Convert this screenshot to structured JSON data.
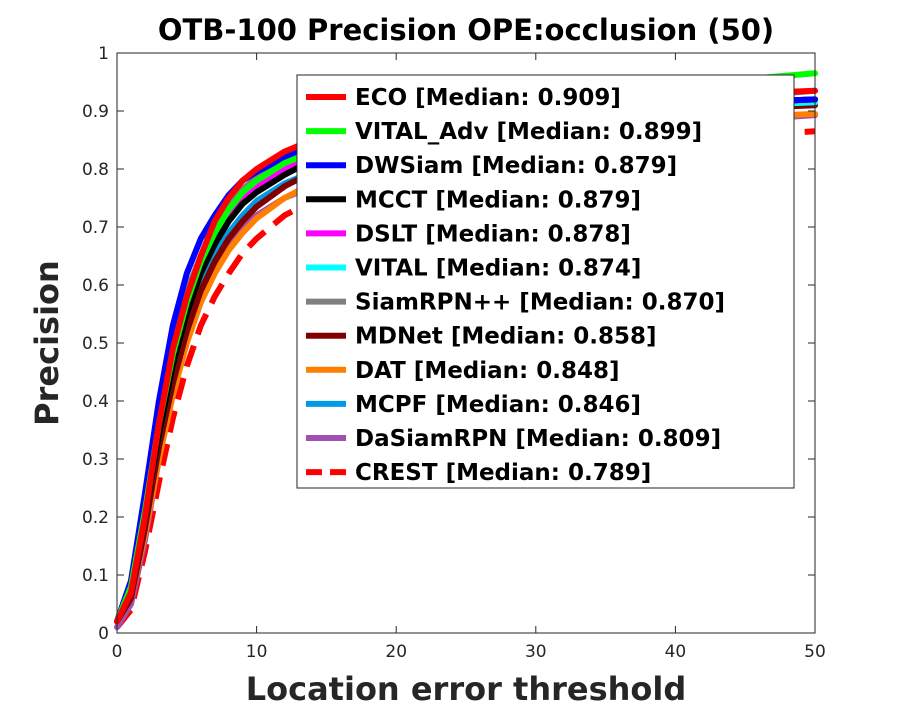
{
  "chart_data": {
    "type": "line",
    "title": "OTB-100 Precision OPE:occlusion (50)",
    "xlabel": "Location error threshold",
    "ylabel": "Precision",
    "xlim": [
      0,
      50
    ],
    "ylim": [
      0,
      1
    ],
    "xticks": [
      "0",
      "10",
      "20",
      "30",
      "40",
      "50"
    ],
    "yticks": [
      "0",
      "0.1",
      "0.2",
      "0.3",
      "0.4",
      "0.5",
      "0.6",
      "0.7",
      "0.8",
      "0.9",
      "1"
    ],
    "grid": false,
    "legend_position": "top-right",
    "x": [
      0,
      1,
      2,
      3,
      4,
      5,
      6,
      7,
      8,
      9,
      10,
      12,
      14,
      16,
      18,
      20,
      25,
      30,
      35,
      40,
      45,
      50
    ],
    "series": [
      {
        "name": "ECO [Median: 0.909]",
        "color": "#ff0000",
        "dash": false,
        "values": [
          0.02,
          0.07,
          0.2,
          0.36,
          0.49,
          0.58,
          0.65,
          0.71,
          0.75,
          0.78,
          0.8,
          0.83,
          0.85,
          0.87,
          0.88,
          0.89,
          0.9,
          0.91,
          0.92,
          0.925,
          0.93,
          0.935
        ]
      },
      {
        "name": "VITAL_Adv [Median: 0.899]",
        "color": "#00ff00",
        "dash": false,
        "values": [
          0.02,
          0.08,
          0.21,
          0.36,
          0.48,
          0.57,
          0.64,
          0.69,
          0.73,
          0.76,
          0.78,
          0.81,
          0.83,
          0.85,
          0.865,
          0.88,
          0.9,
          0.92,
          0.935,
          0.945,
          0.955,
          0.965
        ]
      },
      {
        "name": "DWSiam [Median: 0.879]",
        "color": "#0000ff",
        "dash": false,
        "values": [
          0.02,
          0.09,
          0.24,
          0.4,
          0.53,
          0.62,
          0.68,
          0.72,
          0.755,
          0.78,
          0.795,
          0.82,
          0.84,
          0.855,
          0.865,
          0.875,
          0.89,
          0.9,
          0.905,
          0.91,
          0.915,
          0.92
        ]
      },
      {
        "name": "MCCT [Median: 0.879]",
        "color": "#000000",
        "dash": false,
        "values": [
          0.02,
          0.07,
          0.2,
          0.34,
          0.46,
          0.55,
          0.62,
          0.67,
          0.71,
          0.74,
          0.76,
          0.79,
          0.815,
          0.835,
          0.85,
          0.86,
          0.88,
          0.895,
          0.905,
          0.91,
          0.915,
          0.92
        ]
      },
      {
        "name": "DSLT [Median: 0.878]",
        "color": "#ff00ff",
        "dash": false,
        "values": [
          0.02,
          0.07,
          0.2,
          0.35,
          0.47,
          0.56,
          0.63,
          0.68,
          0.72,
          0.75,
          0.77,
          0.8,
          0.82,
          0.84,
          0.855,
          0.865,
          0.88,
          0.895,
          0.905,
          0.91,
          0.915,
          0.92
        ]
      },
      {
        "name": "VITAL [Median: 0.874]",
        "color": "#00ffff",
        "dash": false,
        "values": [
          0.02,
          0.07,
          0.2,
          0.34,
          0.46,
          0.55,
          0.62,
          0.67,
          0.71,
          0.74,
          0.765,
          0.795,
          0.815,
          0.835,
          0.85,
          0.86,
          0.875,
          0.89,
          0.9,
          0.905,
          0.91,
          0.915
        ]
      },
      {
        "name": "SiamRPN++ [Median: 0.870]",
        "color": "#808080",
        "dash": false,
        "values": [
          0.02,
          0.09,
          0.23,
          0.38,
          0.5,
          0.59,
          0.65,
          0.7,
          0.735,
          0.765,
          0.785,
          0.81,
          0.83,
          0.845,
          0.855,
          0.865,
          0.88,
          0.895,
          0.905,
          0.915,
          0.925,
          0.935
        ]
      },
      {
        "name": "MDNet [Median: 0.858]",
        "color": "#800000",
        "dash": false,
        "values": [
          0.02,
          0.06,
          0.18,
          0.32,
          0.43,
          0.52,
          0.59,
          0.64,
          0.68,
          0.71,
          0.735,
          0.77,
          0.795,
          0.815,
          0.83,
          0.84,
          0.86,
          0.875,
          0.885,
          0.895,
          0.905,
          0.91
        ]
      },
      {
        "name": "DAT [Median: 0.848]",
        "color": "#ff8000",
        "dash": false,
        "values": [
          0.02,
          0.06,
          0.17,
          0.3,
          0.41,
          0.5,
          0.57,
          0.62,
          0.66,
          0.69,
          0.715,
          0.75,
          0.775,
          0.795,
          0.81,
          0.825,
          0.845,
          0.86,
          0.875,
          0.885,
          0.89,
          0.895
        ]
      },
      {
        "name": "MCPF [Median: 0.846]",
        "color": "#0099e6",
        "dash": false,
        "values": [
          0.02,
          0.06,
          0.18,
          0.32,
          0.44,
          0.53,
          0.6,
          0.65,
          0.69,
          0.72,
          0.745,
          0.775,
          0.795,
          0.81,
          0.825,
          0.835,
          0.855,
          0.87,
          0.885,
          0.895,
          0.905,
          0.915
        ]
      },
      {
        "name": "DaSiamRPN [Median: 0.809]",
        "color": "#a050b0",
        "dash": false,
        "values": [
          0.01,
          0.05,
          0.16,
          0.3,
          0.42,
          0.51,
          0.58,
          0.63,
          0.67,
          0.7,
          0.72,
          0.75,
          0.77,
          0.785,
          0.8,
          0.81,
          0.83,
          0.85,
          0.865,
          0.875,
          0.885,
          0.893
        ]
      },
      {
        "name": "CREST [Median: 0.789]",
        "color": "#ff0000",
        "dash": true,
        "values": [
          0.01,
          0.04,
          0.14,
          0.26,
          0.37,
          0.46,
          0.53,
          0.58,
          0.62,
          0.655,
          0.68,
          0.72,
          0.745,
          0.765,
          0.78,
          0.79,
          0.81,
          0.825,
          0.84,
          0.85,
          0.858,
          0.865
        ]
      }
    ]
  }
}
